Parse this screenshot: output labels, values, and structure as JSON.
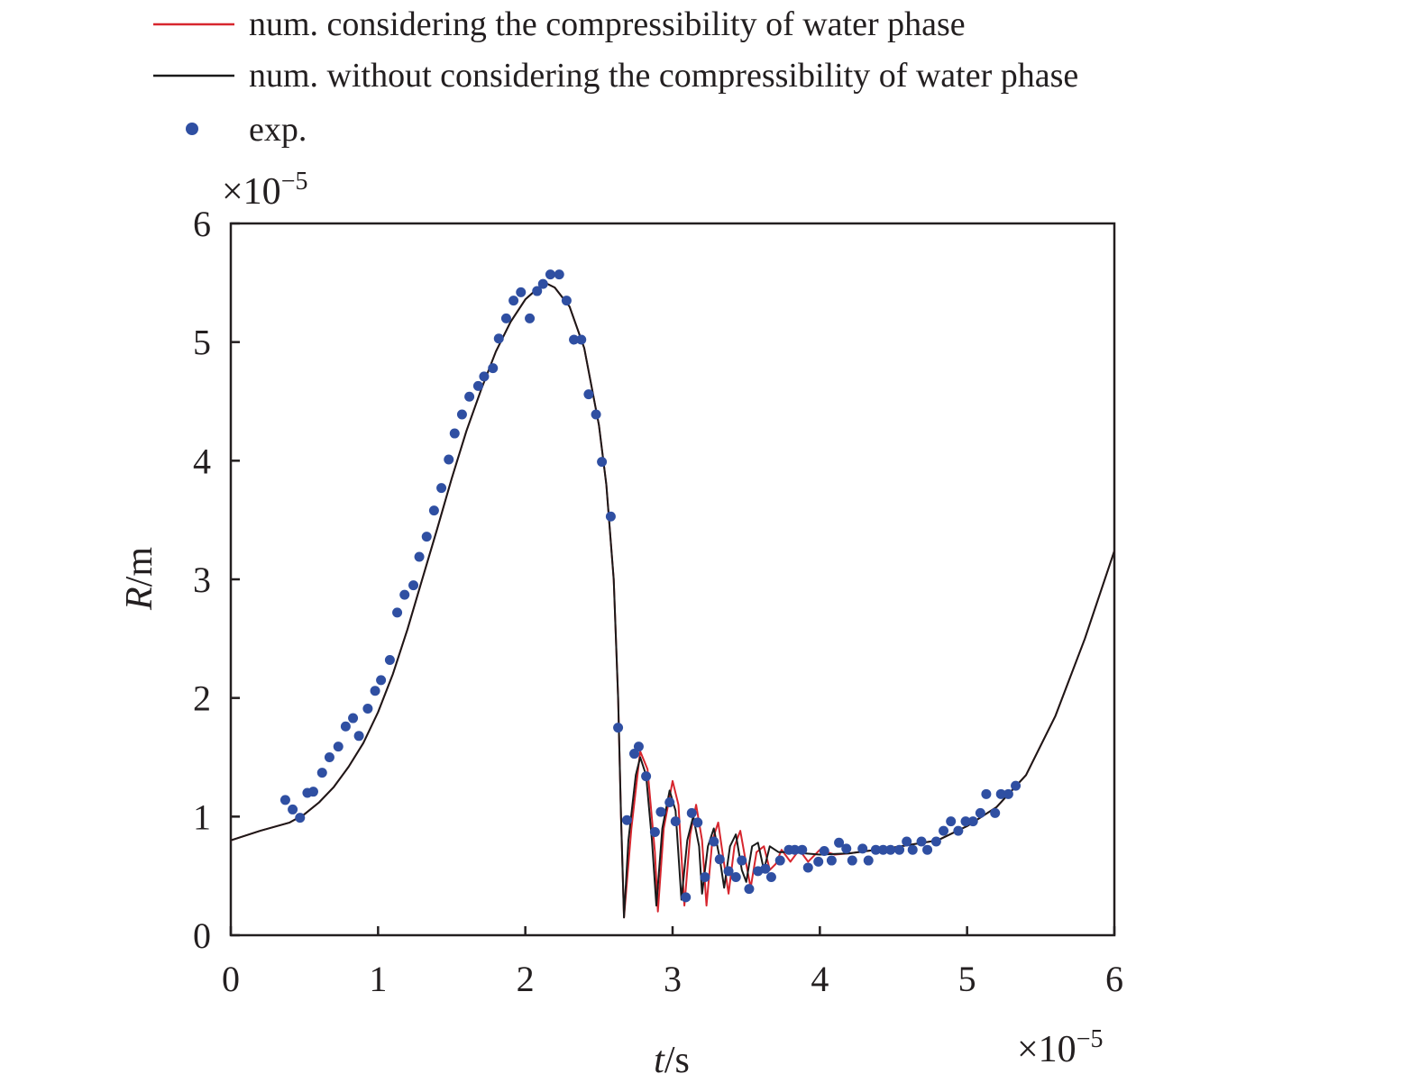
{
  "chart_data": {
    "type": "line",
    "title": "",
    "xlabel_italic": "t",
    "xlabel_unit": "/s",
    "ylabel_italic": "R",
    "ylabel_unit": "/m",
    "x_multiplier": "×10",
    "x_multiplier_exp": "−5",
    "y_multiplier": "×10",
    "y_multiplier_exp": "−5",
    "xlim": [
      0,
      6
    ],
    "ylim": [
      0,
      6
    ],
    "xticks": [
      "0",
      "1",
      "2",
      "3",
      "4",
      "5",
      "6"
    ],
    "yticks": [
      "0",
      "1",
      "2",
      "3",
      "4",
      "5",
      "6"
    ],
    "grid": false,
    "legend_placement": "top",
    "colors": {
      "compressible": "#d7262e",
      "incompressible": "#1a1a1a",
      "exp": "#2f4fa2"
    },
    "series": [
      {
        "name": "num. considering the compressibility of water phase",
        "kind": "line",
        "x": [
          0,
          0.2,
          0.4,
          0.5,
          0.6,
          0.7,
          0.8,
          0.9,
          1.0,
          1.1,
          1.2,
          1.3,
          1.4,
          1.5,
          1.6,
          1.7,
          1.8,
          1.9,
          2.0,
          2.1,
          2.15,
          2.2,
          2.3,
          2.4,
          2.5,
          2.55,
          2.6,
          2.63,
          2.65,
          2.67,
          2.72,
          2.78,
          2.83,
          2.88,
          2.9,
          2.94,
          3.0,
          3.04,
          3.08,
          3.12,
          3.16,
          3.2,
          3.23,
          3.27,
          3.31,
          3.35,
          3.38,
          3.42,
          3.46,
          3.5,
          3.53,
          3.57,
          3.62,
          3.66,
          3.7,
          3.74,
          3.8,
          3.86,
          3.92,
          4.0,
          4.1,
          4.2,
          4.5,
          4.8,
          5.0,
          5.2,
          5.4,
          5.6,
          5.8,
          6.0
        ],
        "y": [
          0.8,
          0.88,
          0.95,
          1.02,
          1.12,
          1.25,
          1.42,
          1.62,
          1.88,
          2.2,
          2.58,
          3.0,
          3.42,
          3.85,
          4.25,
          4.6,
          4.92,
          5.17,
          5.36,
          5.47,
          5.49,
          5.46,
          5.3,
          4.95,
          4.3,
          3.8,
          3.0,
          2.0,
          1.0,
          0.15,
          0.9,
          1.55,
          1.4,
          0.7,
          0.2,
          0.9,
          1.3,
          1.1,
          0.25,
          0.85,
          1.1,
          0.8,
          0.25,
          0.8,
          0.95,
          0.6,
          0.35,
          0.75,
          0.88,
          0.6,
          0.4,
          0.7,
          0.75,
          0.55,
          0.6,
          0.72,
          0.62,
          0.72,
          0.62,
          0.72,
          0.68,
          0.69,
          0.74,
          0.8,
          0.92,
          1.08,
          1.35,
          1.85,
          2.5,
          3.24
        ]
      },
      {
        "name": "num. without considering the compressibility of water phase",
        "kind": "line",
        "x": [
          0,
          0.2,
          0.4,
          0.5,
          0.6,
          0.7,
          0.8,
          0.9,
          1.0,
          1.1,
          1.2,
          1.3,
          1.4,
          1.5,
          1.6,
          1.7,
          1.8,
          1.9,
          2.0,
          2.1,
          2.15,
          2.2,
          2.3,
          2.4,
          2.5,
          2.55,
          2.6,
          2.63,
          2.65,
          2.67,
          2.7,
          2.75,
          2.78,
          2.82,
          2.86,
          2.89,
          2.93,
          2.98,
          3.02,
          3.06,
          3.1,
          3.14,
          3.18,
          3.2,
          3.24,
          3.28,
          3.32,
          3.35,
          3.39,
          3.43,
          3.47,
          3.5,
          3.54,
          3.58,
          3.62,
          3.66,
          3.72,
          3.8,
          4.0,
          4.2,
          4.5,
          4.8,
          5.0,
          5.2,
          5.4,
          5.6,
          5.8,
          6.0
        ],
        "y": [
          0.8,
          0.88,
          0.95,
          1.02,
          1.12,
          1.25,
          1.42,
          1.62,
          1.88,
          2.2,
          2.58,
          3.0,
          3.42,
          3.85,
          4.25,
          4.6,
          4.92,
          5.17,
          5.36,
          5.47,
          5.49,
          5.46,
          5.3,
          4.95,
          4.3,
          3.8,
          3.0,
          2.0,
          1.0,
          0.15,
          0.8,
          1.35,
          1.5,
          1.35,
          0.8,
          0.25,
          0.9,
          1.22,
          1.05,
          0.3,
          0.8,
          1.0,
          0.75,
          0.35,
          0.75,
          0.9,
          0.65,
          0.4,
          0.75,
          0.85,
          0.55,
          0.45,
          0.75,
          0.78,
          0.55,
          0.75,
          0.7,
          0.7,
          0.68,
          0.69,
          0.74,
          0.8,
          0.92,
          1.08,
          1.35,
          1.85,
          2.5,
          3.24
        ]
      },
      {
        "name": "exp.",
        "kind": "scatter",
        "x": [
          0.37,
          0.42,
          0.47,
          0.52,
          0.56,
          0.62,
          0.67,
          0.73,
          0.78,
          0.83,
          0.87,
          0.93,
          0.98,
          1.02,
          1.08,
          1.13,
          1.18,
          1.24,
          1.28,
          1.33,
          1.38,
          1.43,
          1.48,
          1.52,
          1.57,
          1.62,
          1.68,
          1.72,
          1.78,
          1.82,
          1.87,
          1.92,
          1.97,
          2.03,
          2.08,
          2.12,
          2.17,
          2.23,
          2.28,
          2.33,
          2.38,
          2.43,
          2.48,
          2.52,
          2.58,
          2.63,
          2.69,
          2.74,
          2.77,
          2.82,
          2.88,
          2.92,
          2.98,
          3.02,
          3.09,
          3.13,
          3.17,
          3.22,
          3.28,
          3.32,
          3.38,
          3.43,
          3.47,
          3.52,
          3.58,
          3.63,
          3.67,
          3.73,
          3.79,
          3.83,
          3.88,
          3.92,
          3.99,
          4.03,
          4.08,
          4.13,
          4.18,
          4.22,
          4.29,
          4.33,
          4.38,
          4.43,
          4.48,
          4.54,
          4.59,
          4.63,
          4.69,
          4.73,
          4.79,
          4.84,
          4.89,
          4.94,
          4.99,
          5.04,
          5.09,
          5.13,
          5.19,
          5.23,
          5.28,
          5.33
        ],
        "y": [
          1.14,
          1.06,
          0.99,
          1.2,
          1.21,
          1.37,
          1.5,
          1.59,
          1.76,
          1.83,
          1.68,
          1.91,
          2.06,
          2.15,
          2.32,
          2.72,
          2.87,
          2.95,
          3.19,
          3.36,
          3.58,
          3.77,
          4.01,
          4.23,
          4.39,
          4.54,
          4.63,
          4.71,
          4.78,
          5.03,
          5.2,
          5.35,
          5.42,
          5.2,
          5.43,
          5.49,
          5.57,
          5.57,
          5.35,
          5.02,
          5.02,
          4.56,
          4.39,
          3.99,
          3.53,
          1.75,
          0.97,
          1.53,
          1.59,
          1.34,
          0.87,
          1.04,
          1.12,
          0.96,
          0.32,
          1.03,
          0.95,
          0.49,
          0.79,
          0.64,
          0.54,
          0.49,
          0.63,
          0.39,
          0.54,
          0.56,
          0.49,
          0.63,
          0.72,
          0.72,
          0.72,
          0.57,
          0.62,
          0.71,
          0.63,
          0.78,
          0.73,
          0.63,
          0.73,
          0.63,
          0.72,
          0.72,
          0.72,
          0.72,
          0.79,
          0.72,
          0.79,
          0.72,
          0.79,
          0.88,
          0.96,
          0.88,
          0.96,
          0.96,
          1.03,
          1.19,
          1.03,
          1.19,
          1.19,
          1.26
        ]
      }
    ]
  }
}
